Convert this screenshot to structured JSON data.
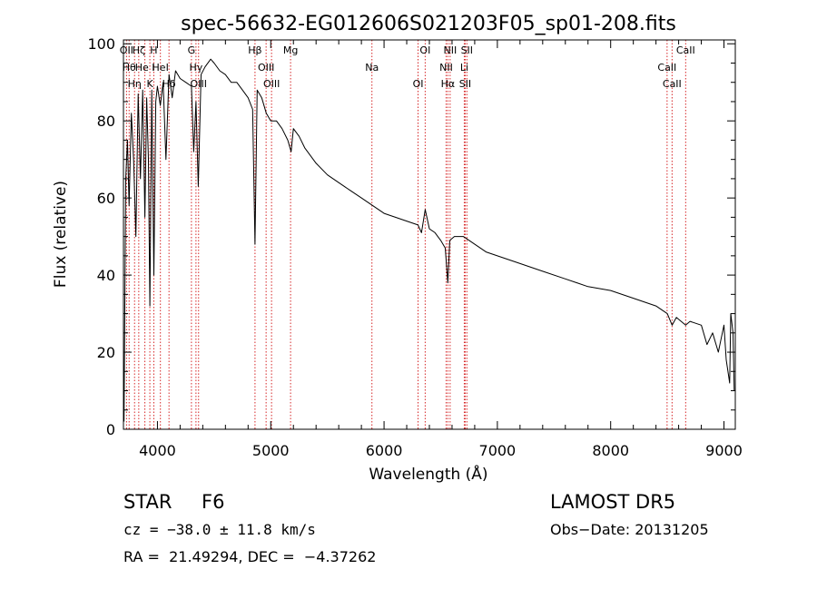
{
  "chart_data": {
    "type": "line",
    "title": "spec-56632-EG012606S021203F05_sp01-208.fits",
    "xlabel": "Wavelength (Å)",
    "ylabel": "Flux (relative)",
    "xlim": [
      3700,
      9100
    ],
    "ylim": [
      0,
      101
    ],
    "xticks": [
      4000,
      5000,
      6000,
      7000,
      8000,
      9000
    ],
    "yticks": [
      0,
      20,
      40,
      60,
      80,
      100
    ],
    "xtick_labels": [
      "4000",
      "5000",
      "6000",
      "7000",
      "8000",
      "9000"
    ],
    "ytick_labels": [
      "0",
      "20",
      "40",
      "60",
      "80",
      "100"
    ],
    "grid": false,
    "line_color": "#000000",
    "marker_color": "#d62728",
    "series": [
      {
        "x": [
          3705,
          3720,
          3735,
          3750,
          3770,
          3790,
          3810,
          3830,
          3850,
          3870,
          3889,
          3905,
          3920,
          3933,
          3950,
          3968,
          3985,
          4000,
          4025,
          4050,
          4075,
          4102,
          4130,
          4160,
          4200,
          4250,
          4300,
          4320,
          4340,
          4360,
          4385,
          4420,
          4470,
          4500,
          4550,
          4600,
          4650,
          4700,
          4750,
          4800,
          4840,
          4861,
          4880,
          4920,
          4960,
          5000,
          5050,
          5100,
          5150,
          5180,
          5200,
          5250,
          5300,
          5400,
          5500,
          5600,
          5700,
          5800,
          5900,
          6000,
          6100,
          6200,
          6300,
          6330,
          6363,
          6400,
          6450,
          6500,
          6540,
          6563,
          6580,
          6620,
          6700,
          6800,
          6900,
          7000,
          7200,
          7400,
          7600,
          7800,
          8000,
          8200,
          8400,
          8500,
          8542,
          8580,
          8662,
          8700,
          8800,
          8850,
          8900,
          8950,
          9000,
          9020,
          9050,
          9060,
          9080,
          9090
        ],
        "y": [
          2,
          65,
          75,
          58,
          82,
          70,
          50,
          87,
          65,
          88,
          55,
          86,
          70,
          32,
          88,
          40,
          85,
          89,
          84,
          90,
          70,
          92,
          86,
          93,
          91,
          90,
          89,
          72,
          85,
          63,
          92,
          94,
          96,
          95,
          93,
          92,
          90,
          90,
          88,
          86,
          83,
          48,
          88,
          86,
          82,
          80,
          80,
          78,
          75,
          72,
          78,
          76,
          73,
          69,
          66,
          64,
          62,
          60,
          58,
          56,
          55,
          54,
          53,
          51,
          57,
          52,
          51,
          49,
          47,
          38,
          49,
          50,
          50,
          48,
          46,
          45,
          43,
          41,
          39,
          37,
          36,
          34,
          32,
          30,
          27,
          29,
          27,
          28,
          27,
          22,
          25,
          20,
          27,
          18,
          12,
          30,
          25,
          10
        ]
      }
    ],
    "lines": [
      {
        "x": 3727,
        "label": "OII"
      },
      {
        "x": 3750,
        "label": "Hθ"
      },
      {
        "x": 3798,
        "label": "Hη"
      },
      {
        "x": 3835,
        "label": "Hζ"
      },
      {
        "x": 3889,
        "label": "He I"
      },
      {
        "x": 3933,
        "label": "K"
      },
      {
        "x": 3968,
        "label": "H"
      },
      {
        "x": 4026,
        "label": "HeI"
      },
      {
        "x": 4102,
        "label": "Hδ"
      },
      {
        "x": 4300,
        "label": "G"
      },
      {
        "x": 4340,
        "label": "Hγ"
      },
      {
        "x": 4363,
        "label": "OIII"
      },
      {
        "x": 4861,
        "label": "Hβ"
      },
      {
        "x": 4959,
        "label": "OIII"
      },
      {
        "x": 5007,
        "label": "OIII"
      },
      {
        "x": 5175,
        "label": "Mg"
      },
      {
        "x": 5893,
        "label": "Na"
      },
      {
        "x": 6300,
        "label": "OI"
      },
      {
        "x": 6363,
        "label": "OI"
      },
      {
        "x": 6548,
        "label": "NII"
      },
      {
        "x": 6563,
        "label": "Hα"
      },
      {
        "x": 6583,
        "label": "NII"
      },
      {
        "x": 6708,
        "label": "Li"
      },
      {
        "x": 6716,
        "label": "SII"
      },
      {
        "x": 6731,
        "label": "SII"
      },
      {
        "x": 8498,
        "label": "CaII"
      },
      {
        "x": 8542,
        "label": "CaII"
      },
      {
        "x": 8662,
        "label": "CaII"
      }
    ]
  },
  "info": {
    "class_label": "STAR",
    "subclass": "F6",
    "cz": "cz = −38.0 ± 11.8 km/s",
    "radec": "RA =  21.49294, DEC =  −4.37262",
    "survey": "LAMOST DR5",
    "obs_date": "Obs−Date: 20131205"
  }
}
